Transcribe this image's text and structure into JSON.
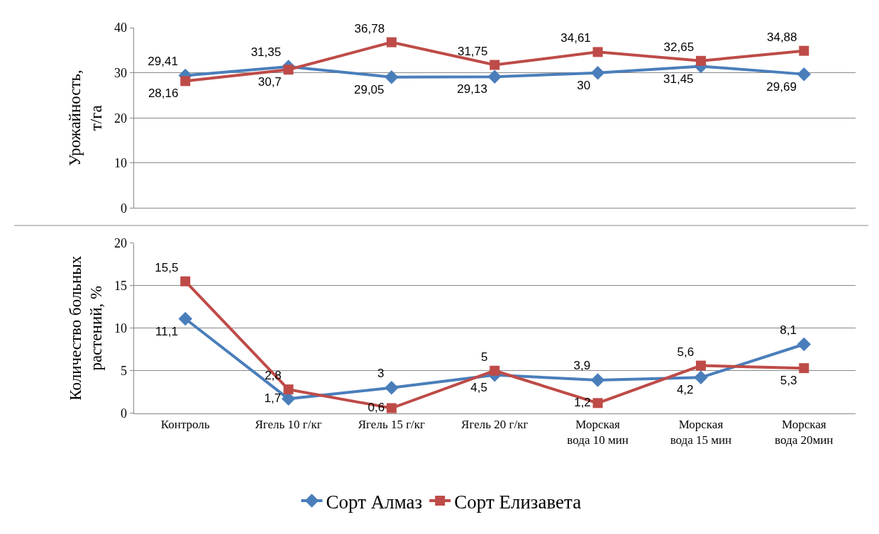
{
  "chart_data": [
    {
      "type": "line",
      "ylabel": "Урожайность,\nт/га",
      "categories": [
        "Контроль",
        "Ягель 10 г/кг",
        "Ягель 15 г/кг",
        "Ягель 20 г/кг",
        "Морская\nвода 10 мин",
        "Морская\nвода 15 мин",
        "Морская\nвода 20мин"
      ],
      "ylim": [
        0,
        40
      ],
      "yticks": [
        0,
        10,
        20,
        30,
        40
      ],
      "grid": "y",
      "tick_labels": "y",
      "legend": "bottom",
      "series": [
        {
          "name": "Сорт Алмаз",
          "color": "#4a7ebb",
          "marker": "diamond",
          "values": [
            29.41,
            31.35,
            29.05,
            29.13,
            30,
            31.45,
            29.69
          ],
          "value_labels": [
            "29,41",
            "31,35",
            "29,05",
            "29,13",
            "30",
            "31,45",
            "29,69"
          ]
        },
        {
          "name": "Сорт Елизавета",
          "color": "#be4b48",
          "marker": "square",
          "values": [
            28.16,
            30.7,
            36.78,
            31.75,
            34.61,
            32.65,
            34.88
          ],
          "value_labels": [
            "28,16",
            "30,7",
            "36,78",
            "31,75",
            "34,61",
            "32,65",
            "34,88"
          ]
        }
      ]
    },
    {
      "type": "line",
      "ylabel": "Количество больных\nрастений, %",
      "categories": [
        "Контроль",
        "Ягель 10 г/кг",
        "Ягель 15 г/кг",
        "Ягель 20 г/кг",
        "Морская\nвода 10 мин",
        "Морская\nвода 15 мин",
        "Морская\nвода 20мин"
      ],
      "ylim": [
        0,
        20
      ],
      "yticks": [
        0,
        5,
        10,
        15,
        20
      ],
      "grid": "y",
      "legend": "bottom",
      "series": [
        {
          "name": "Сорт Алмаз",
          "color": "#4a7ebb",
          "marker": "diamond",
          "values": [
            11.1,
            1.7,
            3,
            4.5,
            3.9,
            4.2,
            8.1
          ],
          "value_labels": [
            "11,1",
            "1,7",
            "3",
            "4,5",
            "3,9",
            "4,2",
            "8,1"
          ]
        },
        {
          "name": "Сорт Елизавета",
          "color": "#be4b48",
          "marker": "square",
          "values": [
            15.5,
            2.8,
            0.6,
            5,
            1.2,
            5.6,
            5.3
          ],
          "value_labels": [
            "15,5",
            "2,8",
            "0,6",
            "5",
            "1,2",
            "5,6",
            "5,3"
          ]
        }
      ]
    }
  ]
}
